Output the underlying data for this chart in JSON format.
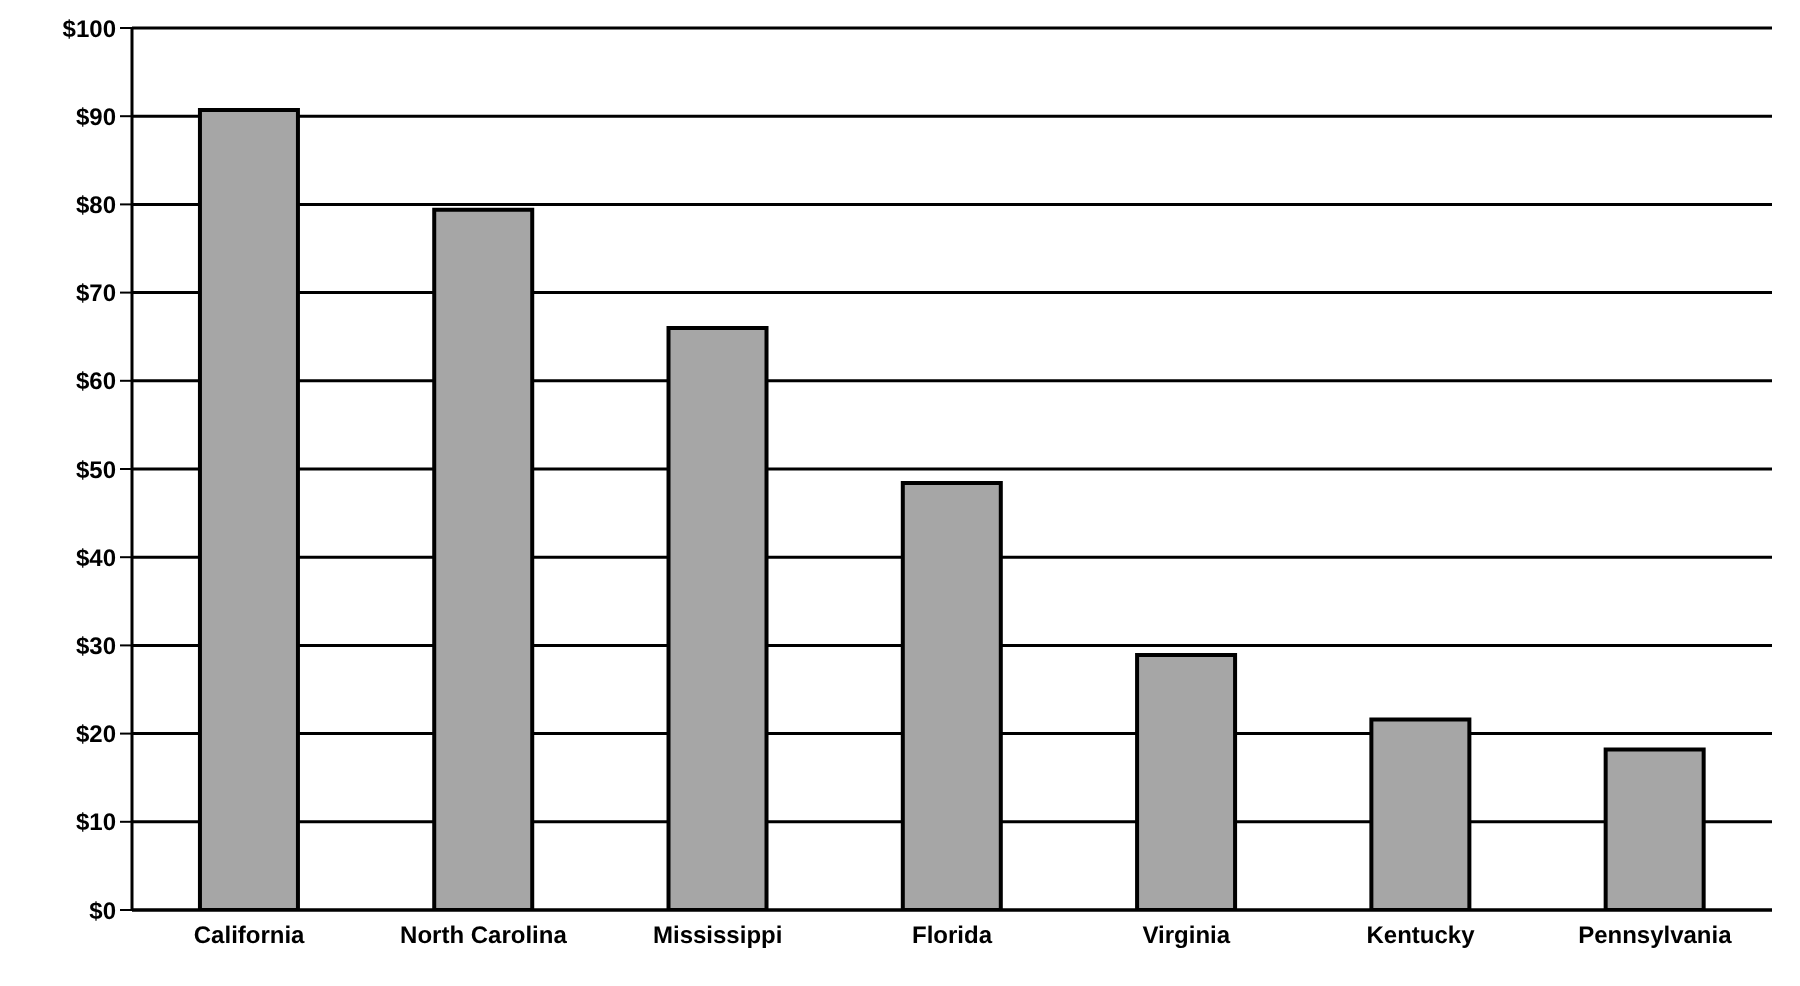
{
  "chart_data": {
    "type": "bar",
    "categories": [
      "California",
      "North Carolina",
      "Mississippi",
      "Florida",
      "Virginia",
      "Kentucky",
      "Pennsylvania"
    ],
    "values": [
      90.7,
      79.4,
      66,
      48.4,
      28.9,
      21.6,
      18.2
    ],
    "color": "#a6a6a6",
    "ylim": [
      0,
      100
    ],
    "yticks": [
      {
        "value": 0,
        "label": "$0"
      },
      {
        "value": 10,
        "label": "$10"
      },
      {
        "value": 20,
        "label": "$20"
      },
      {
        "value": 30,
        "label": "$30"
      },
      {
        "value": 40,
        "label": "$40"
      },
      {
        "value": 50,
        "label": "$50"
      },
      {
        "value": 60,
        "label": "$60"
      },
      {
        "value": 70,
        "label": "$70"
      },
      {
        "value": 80,
        "label": "$80"
      },
      {
        "value": 90,
        "label": "$90"
      },
      {
        "value": 100,
        "label": "$100"
      }
    ],
    "grid": "y"
  }
}
